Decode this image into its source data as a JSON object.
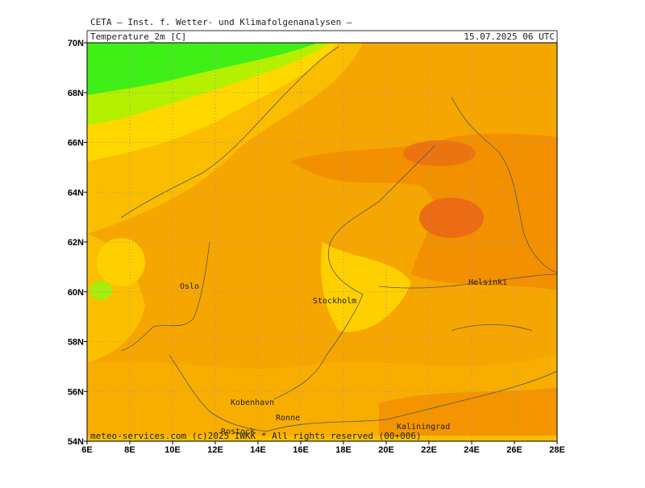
{
  "header": "CETA – Inst. f. Wetter- und Klimafolgenanalysen –",
  "panel": {
    "title": "Temperature_2m [C]",
    "datetime": "15.07.2025 06 UTC"
  },
  "map": {
    "xlim": [
      6,
      28
    ],
    "ylim": [
      54,
      70
    ],
    "lat_ticks": [
      {
        "value": 70,
        "label": "70N"
      },
      {
        "value": 68,
        "label": "68N"
      },
      {
        "value": 66,
        "label": "66N"
      },
      {
        "value": 64,
        "label": "64N"
      },
      {
        "value": 62,
        "label": "62N"
      },
      {
        "value": 60,
        "label": "60N"
      },
      {
        "value": 58,
        "label": "58N"
      },
      {
        "value": 56,
        "label": "56N"
      },
      {
        "value": 54,
        "label": "54N"
      }
    ],
    "lon_ticks": [
      {
        "value": 6,
        "label": "6E"
      },
      {
        "value": 8,
        "label": "8E"
      },
      {
        "value": 10,
        "label": "10E"
      },
      {
        "value": 12,
        "label": "12E"
      },
      {
        "value": 14,
        "label": "14E"
      },
      {
        "value": 16,
        "label": "16E"
      },
      {
        "value": 18,
        "label": "18E"
      },
      {
        "value": 20,
        "label": "20E"
      },
      {
        "value": 22,
        "label": "22E"
      },
      {
        "value": 24,
        "label": "24E"
      },
      {
        "value": 26,
        "label": "26E"
      },
      {
        "value": 28,
        "label": "28E"
      }
    ],
    "cities": [
      "Oslo",
      "Stockholm",
      "Helsinki",
      "Kobenhavn",
      "Ronne",
      "Rostock",
      "Kaliningrad"
    ]
  },
  "footer": "meteo-services.com (c)2025 IWKK * All rights reserved (00+006)"
}
